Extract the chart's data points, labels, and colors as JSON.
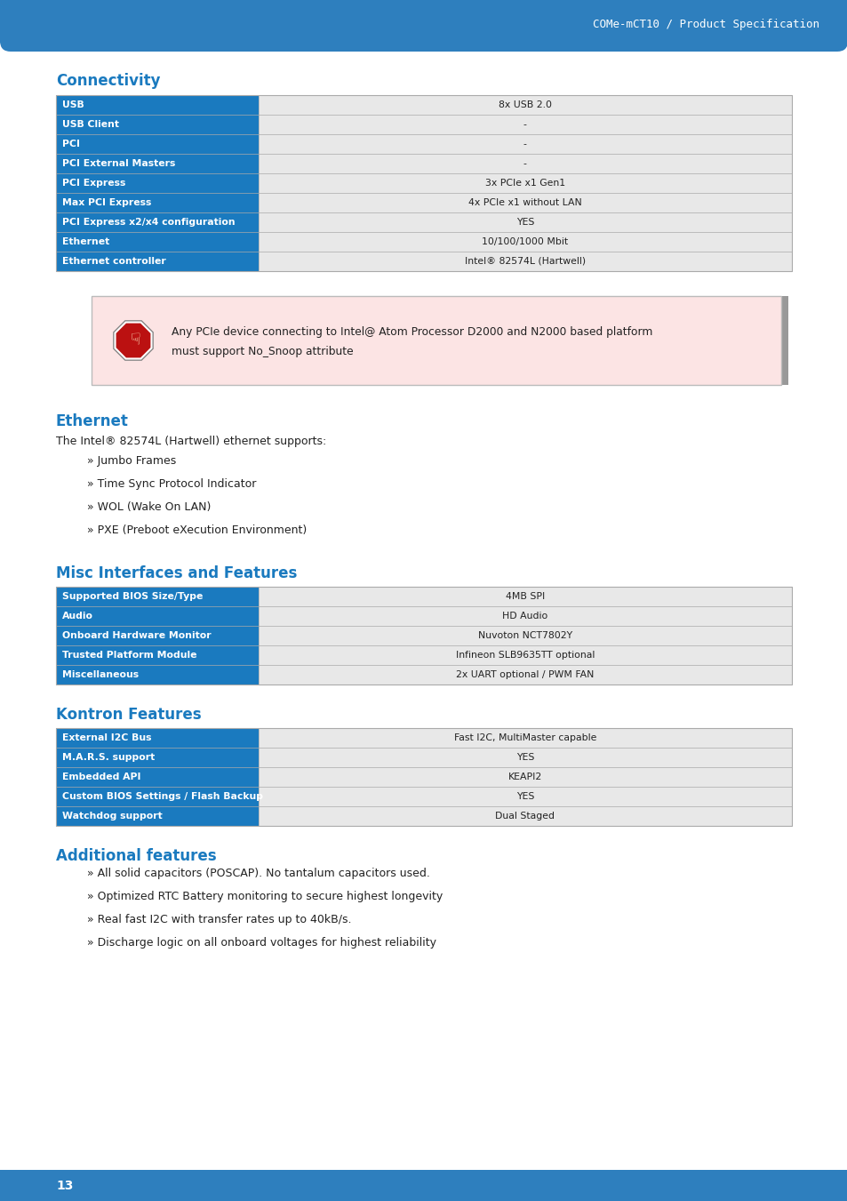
{
  "header_text": "COMe-mCT10 / Product Specification",
  "header_bg": "#2e7fbe",
  "header_text_color": "#ffffff",
  "page_bg": "#ffffff",
  "section1_title": "Connectivity",
  "section_color": "#1a7abf",
  "connectivity_rows": [
    {
      "label": "USB",
      "value": "8x USB 2.0"
    },
    {
      "label": "USB Client",
      "value": "-"
    },
    {
      "label": "PCI",
      "value": "-"
    },
    {
      "label": "PCI External Masters",
      "value": "-"
    },
    {
      "label": "PCI Express",
      "value": "3x PCIe x1 Gen1"
    },
    {
      "label": "Max PCI Express",
      "value": "4x PCIe x1 without LAN"
    },
    {
      "label": "PCI Express x2/x4 configuration",
      "value": "YES"
    },
    {
      "label": "Ethernet",
      "value": "10/100/1000 Mbit"
    },
    {
      "label": "Ethernet controller",
      "value": "Intel® 82574L (Hartwell)"
    }
  ],
  "table_label_bg": "#1a7abf",
  "table_label_fg": "#ffffff",
  "table_value_bg": "#e8e8e8",
  "table_value_fg": "#222222",
  "table_border": "#aaaaaa",
  "warning_bg": "#fce4e4",
  "warning_border": "#bbbbbb",
  "warning_line1": "Any PCIe device connecting to Intel@ Atom Processor D2000 and N2000 based platform",
  "warning_line2": "must support No_Snoop attribute",
  "section2_title": "Ethernet",
  "ethernet_intro": "The Intel® 82574L (Hartwell) ethernet supports:",
  "ethernet_bullets": [
    "» Jumbo Frames",
    "» Time Sync Protocol Indicator",
    "» WOL (Wake On LAN)",
    "» PXE (Preboot eXecution Environment)"
  ],
  "section3_title": "Misc Interfaces and Features",
  "misc_rows": [
    {
      "label": "Supported BIOS Size/Type",
      "value": "4MB SPI"
    },
    {
      "label": "Audio",
      "value": "HD Audio"
    },
    {
      "label": "Onboard Hardware Monitor",
      "value": "Nuvoton NCT7802Y"
    },
    {
      "label": "Trusted Platform Module",
      "value": "Infineon SLB9635TT optional"
    },
    {
      "label": "Miscellaneous",
      "value": "2x UART optional / PWM FAN"
    }
  ],
  "section4_title": "Kontron Features",
  "kontron_rows": [
    {
      "label": "External I2C Bus",
      "value": "Fast I2C, MultiMaster capable"
    },
    {
      "label": "M.A.R.S. support",
      "value": "YES"
    },
    {
      "label": "Embedded API",
      "value": "KEAPI2"
    },
    {
      "label": "Custom BIOS Settings / Flash Backup",
      "value": "YES"
    },
    {
      "label": "Watchdog support",
      "value": "Dual Staged"
    }
  ],
  "section5_title": "Additional features",
  "additional_bullets": [
    "» All solid capacitors (POSCAP). No tantalum capacitors used.",
    "» Optimized RTC Battery monitoring to secure highest longevity",
    "» Real fast I2C with transfer rates up to 40kB/s.",
    "» Discharge logic on all onboard voltages for highest reliability"
  ],
  "footer_bg": "#2e7fbe",
  "footer_text": "13",
  "footer_text_color": "#ffffff"
}
